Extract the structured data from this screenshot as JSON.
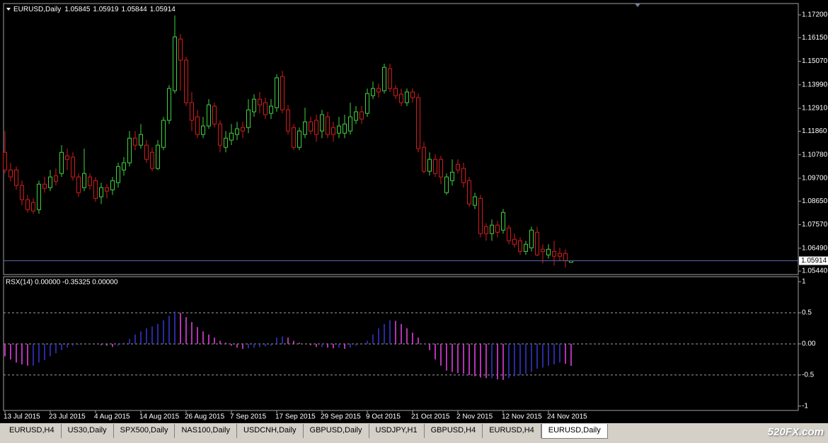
{
  "chart_data": [
    {
      "type": "candlestick",
      "title": "EURUSD,Daily",
      "categories": [
        "13 Jul 2015",
        null,
        null,
        null,
        null,
        null,
        null,
        null,
        "23 Jul 2015",
        null,
        null,
        null,
        null,
        null,
        null,
        null,
        "4 Aug 2015",
        null,
        null,
        null,
        null,
        null,
        null,
        null,
        "14 Aug 2015",
        null,
        null,
        null,
        null,
        null,
        null,
        null,
        "26 Aug 2015",
        null,
        null,
        null,
        null,
        null,
        null,
        null,
        "7 Sep 2015",
        null,
        null,
        null,
        null,
        null,
        null,
        null,
        "17 Sep 2015",
        null,
        null,
        null,
        null,
        null,
        null,
        null,
        "29 Sep 2015",
        null,
        null,
        null,
        null,
        null,
        null,
        null,
        "9 Oct 2015",
        null,
        null,
        null,
        null,
        null,
        null,
        null,
        "21 Oct 2015",
        null,
        null,
        null,
        null,
        null,
        null,
        null,
        "2 Nov 2015",
        null,
        null,
        null,
        null,
        null,
        null,
        null,
        "12 Nov 2015",
        null,
        null,
        null,
        null,
        null,
        null,
        null,
        "24 Nov 2015",
        null,
        null,
        null,
        null
      ],
      "open": [
        1.1089,
        1.1008,
        1.1008,
        1.0937,
        1.0872,
        1.0859,
        1.0826,
        1.0943,
        1.0927,
        1.0982,
        1.0992,
        1.1073,
        1.1067,
        1.0976,
        1.0927,
        1.0976,
        1.0959,
        1.0885,
        1.0927,
        1.0917,
        1.095,
        1.1008,
        1.1041,
        1.1154,
        1.1122,
        1.1122,
        1.1089,
        1.1015,
        1.1112,
        1.1236,
        1.1372,
        1.1609,
        1.1512,
        1.1317,
        1.1252,
        1.1171,
        1.121,
        1.1301,
        1.1219,
        1.1112,
        1.1145,
        1.1171,
        1.1203,
        1.1203,
        1.1275,
        1.1333,
        1.1317,
        1.1268,
        1.1294,
        1.1437,
        1.1284,
        1.1203,
        1.1112,
        1.1171,
        1.1229,
        1.1236,
        1.1187,
        1.1252,
        1.1203,
        1.1177,
        1.1177,
        1.1187,
        1.1236,
        1.1275,
        1.1268,
        1.1349,
        1.1382,
        1.1372,
        1.1473,
        1.1382,
        1.1356,
        1.1317,
        1.1366,
        1.134,
        1.1112,
        1.1002,
        1.1057,
        1.1057,
        1.0904,
        1.0959,
        1.1034,
        1.1015,
        1.0959,
        1.0846,
        1.0878,
        1.0748,
        1.0716,
        1.0755,
        1.0732,
        1.0742,
        1.069,
        1.0683,
        1.0634,
        1.0651,
        1.0722,
        1.0644,
        1.0618,
        1.0634,
        1.0625,
        1.0625,
        1.05845
      ],
      "high": [
        1.1187,
        1.1041,
        1.1024,
        1.0959,
        1.0894,
        1.0878,
        1.0959,
        1.0976,
        1.1008,
        1.1015,
        1.1122,
        1.1106,
        1.1089,
        1.0992,
        1.1106,
        1.0992,
        1.0976,
        1.095,
        1.0943,
        1.0976,
        1.1041,
        1.1067,
        1.1187,
        1.1187,
        1.1219,
        1.1145,
        1.1112,
        1.1145,
        1.1252,
        1.1398,
        1.1717,
        1.1632,
        1.1528,
        1.1366,
        1.1284,
        1.1252,
        1.1333,
        1.1317,
        1.1236,
        1.1187,
        1.1219,
        1.1229,
        1.1229,
        1.1333,
        1.1356,
        1.1366,
        1.134,
        1.1333,
        1.1447,
        1.1463,
        1.1307,
        1.1219,
        1.1203,
        1.1294,
        1.1252,
        1.1262,
        1.1284,
        1.1275,
        1.1229,
        1.1252,
        1.1262,
        1.1317,
        1.1301,
        1.1301,
        1.1382,
        1.1414,
        1.1405,
        1.1496,
        1.1496,
        1.1398,
        1.1382,
        1.1382,
        1.1382,
        1.1359,
        1.1138,
        1.1089,
        1.108,
        1.1073,
        1.0992,
        1.1057,
        1.1057,
        1.1041,
        1.0976,
        1.0904,
        1.0894,
        1.0764,
        1.0781,
        1.0774,
        1.0829,
        1.0755,
        1.0716,
        1.0699,
        1.0683,
        1.0748,
        1.0748,
        1.0667,
        1.0667,
        1.0683,
        1.0651,
        1.0644,
        1.05919
      ],
      "low": [
        1.0992,
        1.0956,
        1.0917,
        1.0846,
        1.0813,
        1.0807,
        1.0807,
        1.0904,
        1.0911,
        1.0937,
        1.0976,
        1.1008,
        1.0959,
        1.0885,
        1.0911,
        1.0917,
        1.0862,
        1.0852,
        1.0878,
        1.0894,
        1.0927,
        1.0982,
        1.1024,
        1.1099,
        1.1106,
        1.1041,
        1.1002,
        1.1008,
        1.1099,
        1.1219,
        1.1359,
        1.1372,
        1.1301,
        1.1187,
        1.1154,
        1.1154,
        1.1197,
        1.1203,
        1.1089,
        1.1089,
        1.1122,
        1.1145,
        1.1154,
        1.1177,
        1.1252,
        1.1268,
        1.1242,
        1.1242,
        1.1275,
        1.1268,
        1.1171,
        1.1099,
        1.1099,
        1.1154,
        1.1171,
        1.1138,
        1.1154,
        1.1154,
        1.1138,
        1.1154,
        1.1154,
        1.1171,
        1.1219,
        1.1219,
        1.1252,
        1.1333,
        1.134,
        1.1359,
        1.1366,
        1.1333,
        1.1301,
        1.1301,
        1.1317,
        1.1089,
        1.0992,
        1.0982,
        1.0976,
        1.0943,
        1.0894,
        1.0937,
        1.0992,
        1.0927,
        1.0839,
        1.0829,
        1.0699,
        1.0683,
        1.0683,
        1.0699,
        1.0716,
        1.0667,
        1.0651,
        1.0618,
        1.0618,
        1.0634,
        1.0612,
        1.0579,
        1.0602,
        1.0569,
        1.0592,
        1.056,
        1.05844
      ],
      "close": [
        1.1008,
        1.0976,
        1.0937,
        1.0872,
        1.0826,
        1.082,
        1.0943,
        1.0924,
        1.0976,
        1.0956,
        1.1089,
        1.1057,
        1.0976,
        1.0904,
        1.0992,
        1.0937,
        1.0878,
        1.0927,
        1.0911,
        1.0959,
        1.1024,
        1.1041,
        1.1154,
        1.1122,
        1.1171,
        1.1057,
        1.1015,
        1.1122,
        1.1236,
        1.1382,
        1.1619,
        1.1512,
        1.1317,
        1.1236,
        1.1171,
        1.121,
        1.1307,
        1.1219,
        1.1122,
        1.1154,
        1.1177,
        1.1197,
        1.1187,
        1.1284,
        1.1333,
        1.1307,
        1.1262,
        1.1301,
        1.1431,
        1.1284,
        1.1187,
        1.1112,
        1.1187,
        1.1229,
        1.1187,
        1.1171,
        1.1262,
        1.1171,
        1.1171,
        1.121,
        1.1219,
        1.1252,
        1.1275,
        1.1242,
        1.1359,
        1.1382,
        1.1366,
        1.1479,
        1.1382,
        1.1349,
        1.1317,
        1.1366,
        1.134,
        1.1106,
        1.1002,
        1.1057,
        1.0992,
        1.0976,
        1.0976,
        1.0998,
        1.1008,
        1.095,
        1.0852,
        1.0885,
        1.0716,
        1.0716,
        1.0755,
        1.0722,
        1.0813,
        1.0683,
        1.0667,
        1.0634,
        1.0667,
        1.0732,
        1.0618,
        1.0634,
        1.0644,
        1.0612,
        1.0612,
        1.0592,
        1.05914
      ],
      "ylim": [
        1.0528,
        1.1772
      ],
      "yticks": [
        {
          "value": 1.172,
          "label": "1.17200"
        },
        {
          "value": 1.1615,
          "label": "1.16150"
        },
        {
          "value": 1.1507,
          "label": "1.15070"
        },
        {
          "value": 1.1399,
          "label": "1.13990"
        },
        {
          "value": 1.1291,
          "label": "1.12910"
        },
        {
          "value": 1.1186,
          "label": "1.11860"
        },
        {
          "value": 1.1078,
          "label": "1.10780"
        },
        {
          "value": 1.097,
          "label": "1.09700"
        },
        {
          "value": 1.0865,
          "label": "1.08650"
        },
        {
          "value": 1.0757,
          "label": "1.07570"
        },
        {
          "value": 1.0649,
          "label": "1.06490"
        },
        {
          "value": 1.0544,
          "label": "1.05440"
        }
      ],
      "up_color": "#3fd23f",
      "down_color": "#d41c1c",
      "price_line_color": "#5868a8"
    },
    {
      "type": "histogram",
      "title": "RSX(14) 0.00000 -0.35325 0.00000",
      "values": [
        -0.2,
        -0.25,
        -0.3,
        -0.33,
        -0.35,
        -0.35,
        -0.3,
        -0.26,
        -0.2,
        -0.15,
        -0.1,
        -0.06,
        -0.03,
        -0.01,
        0,
        0.01,
        0,
        -0.02,
        -0.03,
        -0.05,
        -0.03,
        0.02,
        0.08,
        0.15,
        0.2,
        0.25,
        0.28,
        0.32,
        0.38,
        0.45,
        0.52,
        0.5,
        0.43,
        0.35,
        0.27,
        0.2,
        0.15,
        0.1,
        0.05,
        0.02,
        -0.03,
        -0.06,
        -0.08,
        -0.07,
        -0.06,
        -0.05,
        -0.04,
        -0.03,
        0.1,
        0.12,
        0.1,
        0.05,
        0.02,
        0,
        -0.02,
        -0.05,
        -0.05,
        -0.06,
        -0.07,
        -0.06,
        -0.08,
        -0.06,
        -0.03,
        0,
        0.05,
        0.15,
        0.25,
        0.32,
        0.38,
        0.37,
        0.32,
        0.25,
        0.18,
        0.1,
        0,
        -0.1,
        -0.25,
        -0.35,
        -0.43,
        -0.45,
        -0.47,
        -0.48,
        -0.5,
        -0.52,
        -0.54,
        -0.55,
        -0.55,
        -0.57,
        -0.58,
        -0.55,
        -0.52,
        -0.5,
        -0.48,
        -0.45,
        -0.4,
        -0.38,
        -0.35,
        -0.33,
        -0.3,
        -0.32,
        -0.35325
      ],
      "ylim": [
        -1.07,
        1.08
      ],
      "yticks": [
        1,
        0.5,
        {
          "value": 0,
          "label": "0.00"
        },
        -0.5,
        -1
      ],
      "levels": [
        0.5,
        0,
        -0.5
      ],
      "up_color": "#3434c8",
      "down_color": "#e040e0"
    }
  ],
  "tabs": [
    "EURUSD,H4",
    "US30,Daily",
    "SPX500,Daily",
    "NAS100,Daily",
    "USDCNH,Daily",
    "GBPUSD,Daily",
    "USDJPY,H1",
    "GBPUSD,H4",
    "EURUSD,H4",
    "EURUSD,Daily"
  ],
  "active_tab": 9,
  "watermark": "520FX.com"
}
